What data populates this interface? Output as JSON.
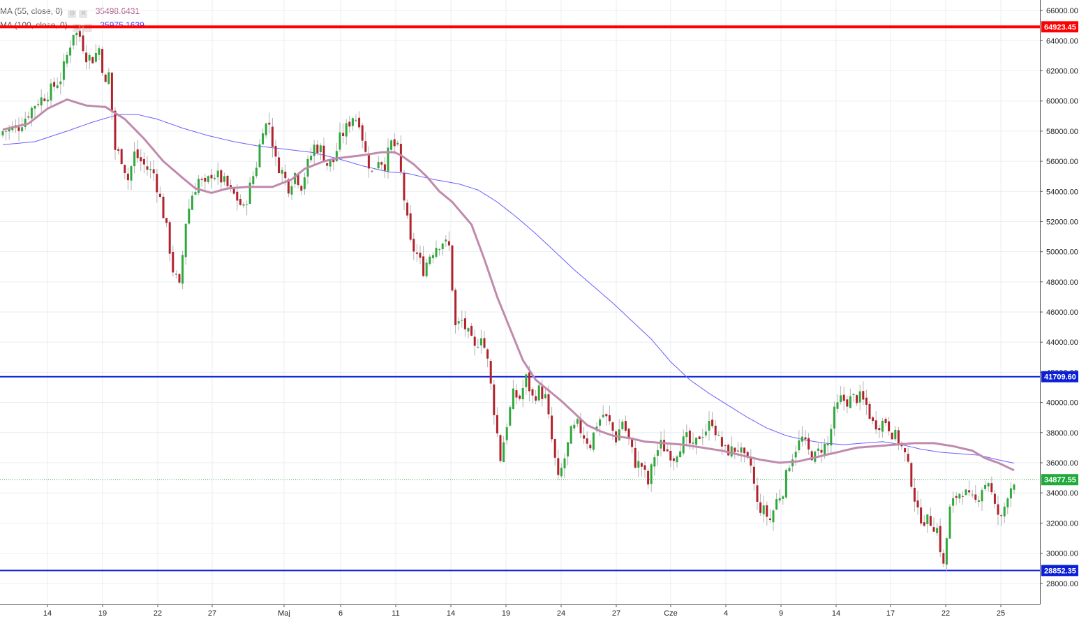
{
  "chart_data": {
    "type": "candlestick",
    "x_tick_labels": [
      "14",
      "19",
      "22",
      "27",
      "Maj",
      "6",
      "11",
      "14",
      "19",
      "24",
      "27",
      "Cze",
      "4",
      "9",
      "14",
      "17",
      "22",
      "25"
    ],
    "y_tick_labels": [
      "28000.00",
      "30000.00",
      "32000.00",
      "34000.00",
      "36000.00",
      "38000.00",
      "40000.00",
      "42000.00",
      "44000.00",
      "46000.00",
      "48000.00",
      "50000.00",
      "52000.00",
      "54000.00",
      "56000.00",
      "58000.00",
      "60000.00",
      "62000.00",
      "64000.00",
      "66000.00"
    ],
    "ylim": [
      26600,
      66700
    ],
    "y_ticks": [
      28000,
      30000,
      32000,
      34000,
      36000,
      38000,
      40000,
      42000,
      44000,
      46000,
      48000,
      50000,
      52000,
      54000,
      56000,
      58000,
      60000,
      62000,
      64000,
      66000
    ],
    "indicators": [
      {
        "name": "MA (55, close, 0)",
        "value": "35498.6431",
        "color": "#c08aac"
      },
      {
        "name": "MA (100, close, 0)",
        "value": "35975.1639",
        "color": "#6a5cff"
      }
    ],
    "horizontal_levels": [
      {
        "label": "64923.45",
        "value": 64923.45,
        "color": "#ff0000"
      },
      {
        "label": "41709.60",
        "value": 41709.6,
        "color": "#0a1fd6"
      },
      {
        "label": "28852.35",
        "value": 28852.35,
        "color": "#0a1fd6"
      }
    ],
    "last_price": {
      "label": "34877.55",
      "value": 34877.55,
      "color": "#1faa3a"
    },
    "close_path": [
      [
        0,
        58000
      ],
      [
        5,
        58300
      ],
      [
        10,
        59800
      ],
      [
        14,
        60500
      ],
      [
        18,
        61500
      ],
      [
        20,
        63000
      ],
      [
        22,
        64600
      ],
      [
        24,
        64300
      ],
      [
        26,
        63000
      ],
      [
        28,
        62800
      ],
      [
        30,
        63500
      ],
      [
        32,
        61000
      ],
      [
        33,
        61800
      ],
      [
        35,
        56800
      ],
      [
        37,
        56200
      ],
      [
        39,
        54800
      ],
      [
        41,
        56500
      ],
      [
        43,
        56000
      ],
      [
        45,
        55500
      ],
      [
        47,
        55200
      ],
      [
        49,
        53500
      ],
      [
        51,
        51500
      ],
      [
        53,
        48800
      ],
      [
        55,
        47600
      ],
      [
        57,
        52000
      ],
      [
        59,
        53800
      ],
      [
        61,
        54800
      ],
      [
        63,
        54300
      ],
      [
        65,
        55200
      ],
      [
        67,
        55000
      ],
      [
        69,
        54600
      ],
      [
        71,
        54000
      ],
      [
        73,
        53500
      ],
      [
        75,
        52800
      ],
      [
        77,
        54300
      ],
      [
        79,
        55800
      ],
      [
        81,
        58300
      ],
      [
        83,
        58500
      ],
      [
        85,
        56000
      ],
      [
        87,
        55300
      ],
      [
        89,
        54300
      ],
      [
        91,
        55200
      ],
      [
        93,
        54400
      ],
      [
        95,
        55800
      ],
      [
        97,
        57000
      ],
      [
        99,
        56800
      ],
      [
        101,
        55800
      ],
      [
        103,
        56000
      ],
      [
        105,
        57500
      ],
      [
        107,
        58200
      ],
      [
        109,
        59000
      ],
      [
        111,
        58700
      ],
      [
        113,
        56500
      ],
      [
        115,
        55200
      ],
      [
        117,
        56200
      ],
      [
        119,
        55800
      ],
      [
        121,
        57200
      ],
      [
        123,
        56800
      ],
      [
        125,
        53500
      ],
      [
        127,
        50500
      ],
      [
        129,
        49800
      ],
      [
        131,
        48800
      ],
      [
        133,
        49800
      ],
      [
        135,
        50400
      ],
      [
        137,
        50700
      ],
      [
        139,
        50300
      ],
      [
        141,
        45000
      ],
      [
        143,
        45400
      ],
      [
        145,
        44500
      ],
      [
        147,
        43500
      ],
      [
        149,
        44600
      ],
      [
        151,
        42700
      ],
      [
        153,
        39500
      ],
      [
        155,
        36300
      ],
      [
        157,
        38600
      ],
      [
        159,
        40500
      ],
      [
        161,
        40300
      ],
      [
        163,
        41600
      ],
      [
        165,
        40300
      ],
      [
        167,
        40800
      ],
      [
        169,
        40300
      ],
      [
        171,
        37500
      ],
      [
        173,
        34800
      ],
      [
        175,
        36300
      ],
      [
        177,
        38000
      ],
      [
        179,
        38500
      ],
      [
        181,
        37800
      ],
      [
        183,
        37200
      ],
      [
        185,
        38600
      ],
      [
        187,
        39200
      ],
      [
        189,
        38600
      ],
      [
        191,
        37600
      ],
      [
        193,
        38800
      ],
      [
        195,
        37500
      ],
      [
        197,
        36000
      ],
      [
        199,
        35800
      ],
      [
        201,
        34600
      ],
      [
        203,
        36500
      ],
      [
        205,
        37200
      ],
      [
        207,
        36800
      ],
      [
        209,
        36400
      ],
      [
        211,
        37200
      ],
      [
        213,
        37600
      ],
      [
        215,
        36900
      ],
      [
        217,
        37800
      ],
      [
        219,
        38200
      ],
      [
        221,
        38800
      ],
      [
        223,
        37500
      ],
      [
        225,
        36800
      ],
      [
        227,
        36800
      ],
      [
        229,
        37000
      ],
      [
        231,
        36200
      ],
      [
        233,
        35800
      ],
      [
        235,
        33200
      ],
      [
        237,
        32800
      ],
      [
        239,
        32200
      ],
      [
        241,
        33500
      ],
      [
        243,
        34200
      ],
      [
        245,
        36000
      ],
      [
        247,
        37000
      ],
      [
        249,
        37600
      ],
      [
        251,
        36700
      ],
      [
        253,
        36400
      ],
      [
        255,
        37000
      ],
      [
        257,
        37200
      ],
      [
        259,
        39300
      ],
      [
        261,
        40200
      ],
      [
        263,
        40100
      ],
      [
        265,
        40300
      ],
      [
        267,
        40300
      ],
      [
        269,
        39800
      ],
      [
        271,
        38600
      ],
      [
        273,
        38600
      ],
      [
        275,
        38800
      ],
      [
        277,
        38000
      ],
      [
        279,
        37500
      ],
      [
        281,
        36500
      ],
      [
        283,
        34800
      ],
      [
        285,
        32600
      ],
      [
        287,
        32200
      ],
      [
        289,
        32100
      ],
      [
        291,
        31600
      ],
      [
        293,
        29100
      ],
      [
        295,
        32900
      ],
      [
        297,
        33800
      ],
      [
        299,
        34200
      ],
      [
        301,
        33600
      ],
      [
        303,
        33400
      ],
      [
        305,
        34400
      ],
      [
        307,
        34800
      ],
      [
        309,
        33000
      ],
      [
        311,
        32200
      ],
      [
        313,
        34000
      ],
      [
        315,
        34877.55
      ]
    ],
    "ma55_path": [
      [
        0,
        58100
      ],
      [
        8,
        58500
      ],
      [
        14,
        59500
      ],
      [
        20,
        60100
      ],
      [
        26,
        59700
      ],
      [
        32,
        59600
      ],
      [
        38,
        58800
      ],
      [
        44,
        57500
      ],
      [
        50,
        56000
      ],
      [
        56,
        54900
      ],
      [
        60,
        54200
      ],
      [
        65,
        53900
      ],
      [
        70,
        54200
      ],
      [
        76,
        54300
      ],
      [
        84,
        54300
      ],
      [
        90,
        54800
      ],
      [
        94,
        55500
      ],
      [
        100,
        56000
      ],
      [
        104,
        56200
      ],
      [
        108,
        56300
      ],
      [
        112,
        56400
      ],
      [
        118,
        56600
      ],
      [
        122,
        56600
      ],
      [
        124,
        56400
      ],
      [
        128,
        55800
      ],
      [
        132,
        55000
      ],
      [
        136,
        54000
      ],
      [
        140,
        53300
      ],
      [
        142,
        52800
      ],
      [
        146,
        51800
      ],
      [
        150,
        49500
      ],
      [
        154,
        47000
      ],
      [
        158,
        44900
      ],
      [
        162,
        42800
      ],
      [
        166,
        41500
      ],
      [
        170,
        40800
      ],
      [
        174,
        40100
      ],
      [
        178,
        39300
      ],
      [
        182,
        38500
      ],
      [
        186,
        38100
      ],
      [
        190,
        37800
      ],
      [
        196,
        37600
      ],
      [
        200,
        37400
      ],
      [
        206,
        37300
      ],
      [
        212,
        37200
      ],
      [
        218,
        37000
      ],
      [
        224,
        36800
      ],
      [
        230,
        36500
      ],
      [
        236,
        36200
      ],
      [
        242,
        36000
      ],
      [
        248,
        36100
      ],
      [
        254,
        36400
      ],
      [
        260,
        36700
      ],
      [
        266,
        37000
      ],
      [
        272,
        37100
      ],
      [
        278,
        37200
      ],
      [
        284,
        37300
      ],
      [
        290,
        37300
      ],
      [
        296,
        37100
      ],
      [
        302,
        36800
      ],
      [
        306,
        36300
      ],
      [
        310,
        36000
      ],
      [
        315,
        35498.64
      ]
    ],
    "ma100_path": [
      [
        0,
        57100
      ],
      [
        10,
        57300
      ],
      [
        20,
        58000
      ],
      [
        28,
        58600
      ],
      [
        36,
        59100
      ],
      [
        42,
        59100
      ],
      [
        48,
        58800
      ],
      [
        56,
        58200
      ],
      [
        64,
        57700
      ],
      [
        72,
        57300
      ],
      [
        80,
        57000
      ],
      [
        88,
        56800
      ],
      [
        96,
        56600
      ],
      [
        104,
        56200
      ],
      [
        112,
        55700
      ],
      [
        120,
        55300
      ],
      [
        126,
        55200
      ],
      [
        134,
        54800
      ],
      [
        142,
        54500
      ],
      [
        148,
        54100
      ],
      [
        154,
        53300
      ],
      [
        160,
        52300
      ],
      [
        166,
        51200
      ],
      [
        172,
        50000
      ],
      [
        178,
        48800
      ],
      [
        184,
        47700
      ],
      [
        190,
        46600
      ],
      [
        196,
        45400
      ],
      [
        202,
        44200
      ],
      [
        208,
        42700
      ],
      [
        214,
        41500
      ],
      [
        220,
        40600
      ],
      [
        226,
        39800
      ],
      [
        232,
        39000
      ],
      [
        238,
        38300
      ],
      [
        244,
        37800
      ],
      [
        250,
        37500
      ],
      [
        256,
        37300
      ],
      [
        262,
        37200
      ],
      [
        268,
        37300
      ],
      [
        274,
        37400
      ],
      [
        280,
        37200
      ],
      [
        286,
        36900
      ],
      [
        292,
        36700
      ],
      [
        298,
        36600
      ],
      [
        304,
        36500
      ],
      [
        310,
        36200
      ],
      [
        315,
        35975.16
      ]
    ]
  }
}
